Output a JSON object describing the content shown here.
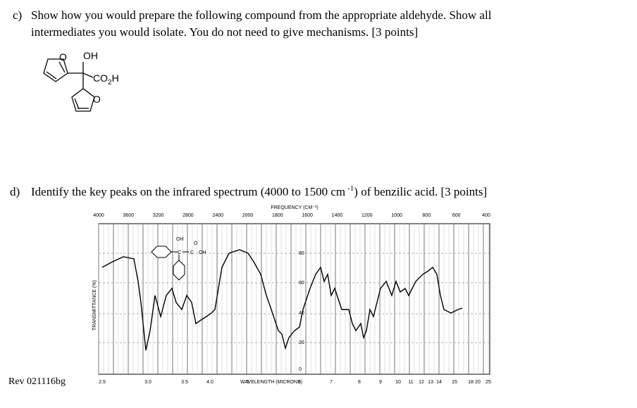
{
  "question_c": {
    "label": "c)",
    "line1": "Show how you would prepare the following compound from the appropriate aldehyde.  Show all",
    "line2": "intermediates you would isolate.  You do not need to give mechanisms.  [3 points]",
    "structure": {
      "ring_o_top": "O",
      "hydroxyl": "OH",
      "carboxyl": [
        "CO",
        "2",
        "H"
      ],
      "ring_o_bottom": "O"
    }
  },
  "question_d": {
    "label": "d)",
    "text_before": "Identify the key peaks on the infrared spectrum (4000 to 1500 cm",
    "superscript": "-1",
    "text_after": ") of benzilic acid. [3 points]"
  },
  "spectrum": {
    "frequency_title": "FREQUENCY (CM⁻¹)",
    "frequency_labels": [
      "4000",
      "3600",
      "3200",
      "2800",
      "2400",
      "2000",
      "1800",
      "1600",
      "1400",
      "1200",
      "1000",
      "800",
      "600",
      "400"
    ],
    "y_title": "TRANSMITTANCE (%)",
    "transmittance_labels": [
      "80",
      "60",
      "40",
      "20",
      "0"
    ],
    "wavelength_title": "WAVELENGTH (MICRONS)",
    "wavelength_labels": [
      "2.5",
      "3.0",
      "3.5",
      "4.0",
      "5",
      "6",
      "7",
      "8",
      "9",
      "10",
      "11",
      "12",
      "13",
      "14",
      "15",
      "18",
      "20",
      "25"
    ],
    "structure": [
      "OH",
      "C",
      "C",
      "O",
      "OH"
    ]
  },
  "footer": "Rev 021116bg"
}
